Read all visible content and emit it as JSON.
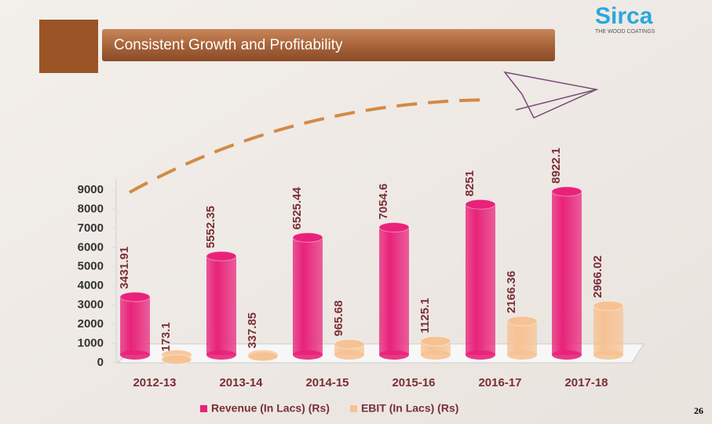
{
  "slide": {
    "logo": "Sirca",
    "logo_tagline": "THE WOOD COATINGS",
    "page_number": "26"
  },
  "chart_data": {
    "type": "bar",
    "title": "Consistent Growth and Profitability",
    "categories": [
      "2012-13",
      "2013-14",
      "2014-15",
      "2015-16",
      "2016-17",
      "2017-18"
    ],
    "series": [
      {
        "name": "Revenue (In Lacs) (Rs)",
        "color": "#e8227a",
        "values": [
          3431.91,
          5552.35,
          6525.44,
          7054.6,
          8251,
          8922.1
        ]
      },
      {
        "name": "EBIT (In Lacs) (Rs)",
        "color": "#f6c293",
        "values": [
          173.1,
          337.85,
          965.68,
          1125.1,
          2166.36,
          2966.02
        ]
      }
    ],
    "ylim": [
      0,
      9000
    ],
    "yticks": [
      0,
      1000,
      2000,
      3000,
      4000,
      5000,
      6000,
      7000,
      8000,
      9000
    ],
    "legend": "bottom"
  }
}
